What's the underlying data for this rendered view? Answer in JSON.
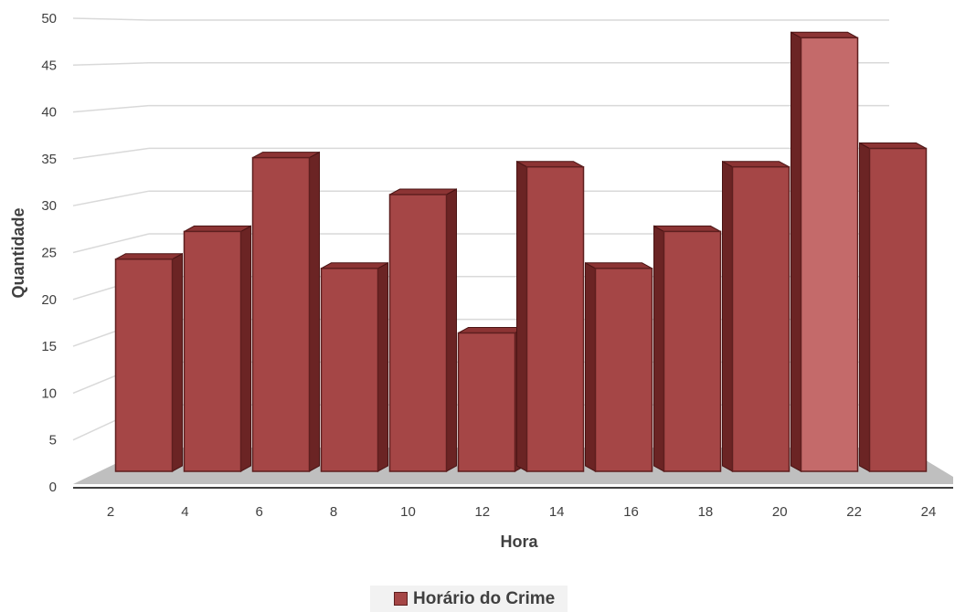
{
  "chart_data": {
    "type": "bar",
    "categories": [
      "2",
      "4",
      "6",
      "8",
      "10",
      "12",
      "14",
      "16",
      "18",
      "20",
      "22",
      "24"
    ],
    "series": [
      {
        "name": "Horário do Crime",
        "values": [
          23,
          26,
          34,
          22,
          30,
          15,
          33,
          22,
          26,
          33,
          47,
          35
        ]
      }
    ],
    "xlabel": "Hora",
    "ylabel": "Quantidade",
    "ylim": [
      0,
      50
    ],
    "yticks": [
      "0",
      "5",
      "10",
      "15",
      "20",
      "25",
      "30",
      "35",
      "40",
      "45",
      "50"
    ],
    "grid": true,
    "legend_position": "bottom",
    "style": "3d-bar",
    "bar_color": "#a54646"
  }
}
